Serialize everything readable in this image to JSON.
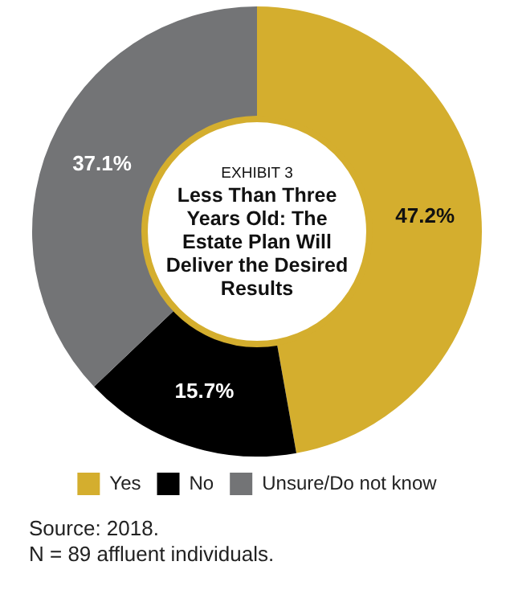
{
  "chart_data": {
    "type": "donut",
    "subtitle": "EXHIBIT 3",
    "title": "Less Than Three Years Old: The Estate Plan Will Deliver the Desired Results",
    "categories": [
      "Yes",
      "No",
      "Unsure/Do not know"
    ],
    "values": [
      47.2,
      15.7,
      37.1
    ],
    "colors": [
      "#d4ae2e",
      "#000000",
      "#737476"
    ],
    "value_labels": [
      "47.2%",
      "15.7%",
      "37.1%"
    ],
    "legend": "bottom",
    "annotations": [
      "Source: 2018.",
      "N = 89 affluent individuals."
    ]
  }
}
